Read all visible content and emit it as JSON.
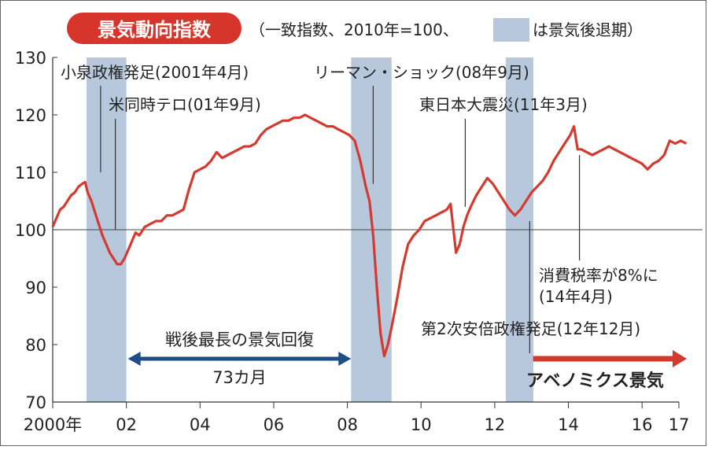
{
  "chart_data": {
    "type": "line",
    "title": "景気動向指数",
    "subtitle_parts": [
      "（一致指数、2010年=100、",
      "は景気後退期）"
    ],
    "ylim": [
      70,
      130
    ],
    "yticks": [
      70,
      80,
      90,
      100,
      110,
      120,
      130
    ],
    "xlim": [
      2000.0,
      2017.0
    ],
    "x_tick_labels": [
      {
        "x": 2000,
        "label": "2000年"
      },
      {
        "x": 2002,
        "label": "02"
      },
      {
        "x": 2004,
        "label": "04"
      },
      {
        "x": 2006,
        "label": "06"
      },
      {
        "x": 2008,
        "label": "08"
      },
      {
        "x": 2010,
        "label": "10"
      },
      {
        "x": 2012,
        "label": "12"
      },
      {
        "x": 2014,
        "label": "14"
      },
      {
        "x": 2016,
        "label": "16"
      },
      {
        "x": 2017,
        "label": "17"
      }
    ],
    "recessions": [
      [
        2000.92,
        2002.0
      ],
      [
        2008.1,
        2009.2
      ],
      [
        2012.3,
        2013.05
      ]
    ],
    "reference_line": 100,
    "series": [
      {
        "x": [
          2000.0,
          2000.1,
          2000.2,
          2000.3,
          2000.4,
          2000.5,
          2000.6,
          2000.7,
          2000.8,
          2000.88,
          2000.95,
          2001.05,
          2001.15,
          2001.25,
          2001.35,
          2001.45,
          2001.55,
          2001.65,
          2001.75,
          2001.85,
          2001.95,
          2002.05,
          2002.15,
          2002.25,
          2002.35,
          2002.5,
          2002.65,
          2002.8,
          2002.95,
          2003.1,
          2003.25,
          2003.4,
          2003.55,
          2003.7,
          2003.85,
          2004.0,
          2004.15,
          2004.3,
          2004.45,
          2004.6,
          2004.75,
          2004.9,
          2005.05,
          2005.2,
          2005.35,
          2005.5,
          2005.65,
          2005.8,
          2005.95,
          2006.1,
          2006.25,
          2006.4,
          2006.55,
          2006.7,
          2006.85,
          2007.0,
          2007.15,
          2007.3,
          2007.45,
          2007.6,
          2007.75,
          2007.9,
          2008.05,
          2008.2,
          2008.35,
          2008.5,
          2008.6,
          2008.7,
          2008.8,
          2008.9,
          2009.0,
          2009.1,
          2009.2,
          2009.35,
          2009.5,
          2009.65,
          2009.8,
          2009.95,
          2010.1,
          2010.25,
          2010.4,
          2010.55,
          2010.7,
          2010.8,
          2010.95,
          2011.05,
          2011.15,
          2011.25,
          2011.35,
          2011.5,
          2011.65,
          2011.8,
          2011.95,
          2012.1,
          2012.25,
          2012.4,
          2012.55,
          2012.7,
          2012.85,
          2013.0,
          2013.15,
          2013.3,
          2013.45,
          2013.6,
          2013.75,
          2013.9,
          2014.05,
          2014.15,
          2014.25,
          2014.35,
          2014.5,
          2014.65,
          2014.8,
          2014.95,
          2015.1,
          2015.25,
          2015.4,
          2015.55,
          2015.7,
          2015.85,
          2016.0,
          2016.15,
          2016.3,
          2016.45,
          2016.6,
          2016.75,
          2016.9,
          2017.05,
          2017.2
        ],
        "values": [
          100.5,
          102.0,
          103.5,
          104.0,
          105.0,
          106.0,
          106.5,
          107.5,
          108.0,
          108.3,
          106.5,
          105.0,
          103.0,
          101.0,
          99.0,
          97.5,
          96.0,
          95.0,
          94.0,
          94.0,
          95.0,
          96.5,
          98.0,
          99.5,
          99.0,
          100.5,
          101.0,
          101.5,
          101.5,
          102.5,
          102.5,
          103.0,
          103.5,
          107.0,
          110.0,
          110.5,
          111.0,
          112.0,
          113.5,
          112.5,
          113.0,
          113.5,
          114.0,
          114.5,
          114.5,
          115.0,
          116.5,
          117.5,
          118.0,
          118.5,
          119.0,
          119.0,
          119.5,
          119.5,
          120.0,
          119.5,
          119.0,
          118.5,
          118.0,
          118.0,
          117.5,
          117.0,
          116.5,
          115.5,
          112.0,
          107.5,
          105.0,
          99.0,
          90.0,
          82.0,
          78.0,
          80.0,
          83.0,
          88.0,
          93.5,
          97.5,
          99.0,
          100.0,
          101.5,
          102.0,
          102.5,
          103.0,
          103.5,
          104.5,
          96.0,
          97.5,
          100.5,
          102.5,
          104.0,
          106.0,
          107.5,
          109.0,
          108.0,
          106.5,
          105.0,
          103.5,
          102.5,
          103.5,
          105.0,
          106.5,
          107.5,
          108.5,
          110.0,
          112.0,
          113.5,
          115.0,
          116.5,
          118.0,
          114.0,
          114.0,
          113.5,
          113.0,
          113.5,
          114.0,
          114.5,
          114.0,
          113.5,
          113.0,
          112.5,
          112.0,
          111.5,
          110.5,
          111.5,
          112.0,
          113.0,
          115.5,
          115.0,
          115.5,
          115.0
        ]
      }
    ],
    "annotations": [
      {
        "text": "小泉政権発足(2001年4月)",
        "x": 2001.3,
        "anchor_y": 110
      },
      {
        "text": "米同時テロ(01年9月)",
        "x": 2001.7,
        "anchor_y": 100
      },
      {
        "text": "リーマン・ショック(08年9月)",
        "x": 2008.7,
        "anchor_y": 108
      },
      {
        "text": "東日本大震災(11年3月)",
        "x": 2011.2,
        "anchor_y": 104
      },
      {
        "text": "消費税率が8%に",
        "text2": "(14年4月)",
        "x": 2014.3,
        "anchor_y": 113
      },
      {
        "text": "第2次安倍政権発足(12年12月)",
        "x": 2012.95,
        "anchor_y": 102
      }
    ],
    "arrows": [
      {
        "label_top": "戦後最長の景気回復",
        "label_bottom": "73カ月",
        "from": 2002.0,
        "to": 2008.1,
        "color": "#1f4e85"
      },
      {
        "label_bottom": "アベノミクス景気",
        "from": 2013.0,
        "to": 2017.3,
        "color": "#d23a2e"
      }
    ],
    "colors": {
      "line": "#d43a2f",
      "recession": "#b7c8dd",
      "title_bg": "#d7352b"
    }
  }
}
